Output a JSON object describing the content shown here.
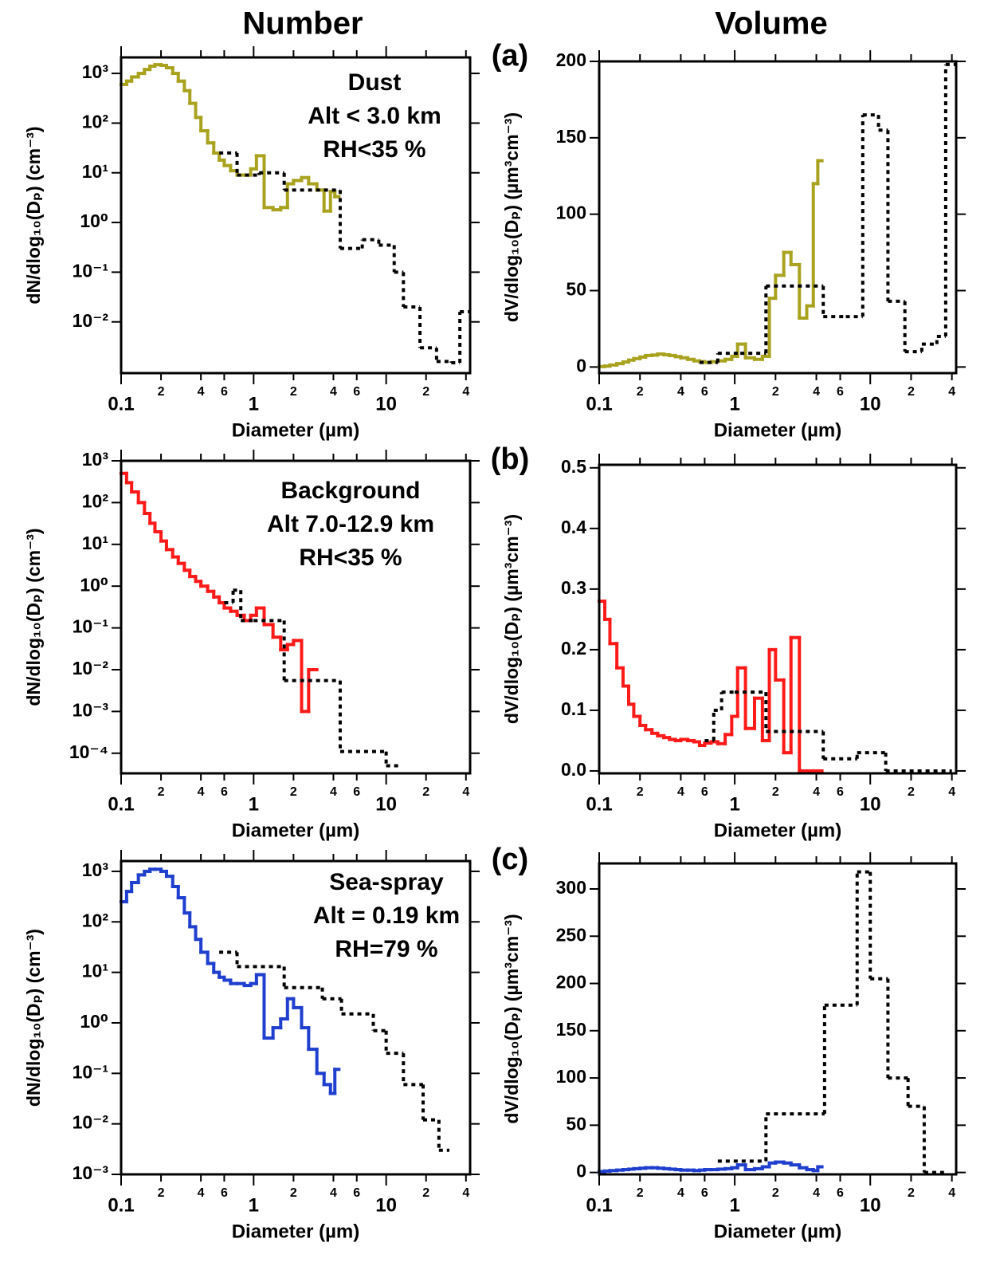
{
  "header": {
    "left": "Number",
    "right": "Volume"
  },
  "panel_labels": [
    "(a)",
    "(b)",
    "(c)"
  ],
  "chart_data": [
    {
      "type": "step",
      "x_label": "Diameter (µm)",
      "y_label": "dN/dlog₁₀(Dₚ) (cm⁻³)",
      "xlog": true,
      "ylog": true,
      "xlim": [
        0.1,
        43
      ],
      "ylim": [
        0.00093,
        2100
      ],
      "xticks": [
        0.1,
        {
          "value": 0.2,
          "label": "2"
        },
        {
          "value": 0.4,
          "label": "4"
        },
        {
          "value": 0.6,
          "label": "6"
        },
        1,
        {
          "value": 2,
          "label": "2"
        },
        {
          "value": 4,
          "label": "4"
        },
        {
          "value": 6,
          "label": "6"
        },
        10,
        {
          "value": 20,
          "label": "2"
        },
        {
          "value": 40,
          "label": "4"
        }
      ],
      "yticks": [
        {
          "value": 0.01,
          "label": "10⁻²"
        },
        {
          "value": 0.1,
          "label": "10⁻¹"
        },
        {
          "value": 1,
          "label": "10⁰"
        },
        {
          "value": 10,
          "label": "10¹"
        },
        {
          "value": 100,
          "label": "10²"
        },
        {
          "value": 1000,
          "label": "10³"
        }
      ],
      "annotations": [
        "Dust",
        "Alt < 3.0 km",
        "RH<35 %"
      ],
      "series": [
        {
          "color": "#a9a21f",
          "style": "solid",
          "bins": [
            0.1,
            0.11,
            0.12,
            0.135,
            0.15,
            0.165,
            0.18,
            0.2,
            0.22,
            0.245,
            0.27,
            0.3,
            0.33,
            0.365,
            0.4,
            0.45,
            0.5,
            0.55,
            0.6,
            0.67,
            0.75,
            0.85,
            0.95,
            1.05,
            1.2,
            1.4,
            1.6,
            1.8,
            2.0,
            2.3,
            2.6,
            3.0,
            3.4,
            3.8,
            4.1,
            4.4
          ],
          "values": [
            600,
            700,
            850,
            1000,
            1200,
            1400,
            1500,
            1450,
            1300,
            1000,
            700,
            450,
            250,
            130,
            70,
            40,
            25,
            18,
            14,
            11,
            9,
            9,
            12,
            22,
            2,
            1.8,
            2,
            6,
            7,
            8,
            6,
            4.5,
            1.7,
            4.2,
            3.3
          ]
        },
        {
          "color": "#000000",
          "style": "dotted",
          "bins": [
            0.55,
            0.75,
            1.1,
            1.7,
            4.5,
            6.6,
            8.8,
            11.5,
            13.5,
            18,
            24,
            31,
            36,
            43
          ],
          "values": [
            25,
            9,
            10,
            4.5,
            0.3,
            0.45,
            0.35,
            0.1,
            0.02,
            0.003,
            0.0016,
            0.0015,
            0.016
          ]
        }
      ]
    },
    {
      "type": "step",
      "x_label": "Diameter (µm)",
      "y_label": "dV/dlog₁₀(Dₚ) (µm³cm⁻³)",
      "xlog": true,
      "ylog": false,
      "xlim": [
        0.1,
        43
      ],
      "ylim": [
        -4,
        200
      ],
      "xticks": [
        0.1,
        {
          "value": 0.2,
          "label": "2"
        },
        {
          "value": 0.4,
          "label": "4"
        },
        {
          "value": 0.6,
          "label": "6"
        },
        1,
        {
          "value": 2,
          "label": "2"
        },
        {
          "value": 4,
          "label": "4"
        },
        {
          "value": 6,
          "label": "6"
        },
        10,
        {
          "value": 20,
          "label": "2"
        },
        {
          "value": 40,
          "label": "4"
        }
      ],
      "yticks": [
        0,
        50,
        100,
        150,
        200
      ],
      "series": [
        {
          "color": "#a9a21f",
          "style": "solid",
          "bins": [
            0.1,
            0.11,
            0.12,
            0.135,
            0.15,
            0.165,
            0.18,
            0.2,
            0.22,
            0.245,
            0.27,
            0.3,
            0.33,
            0.365,
            0.4,
            0.45,
            0.5,
            0.55,
            0.6,
            0.67,
            0.75,
            0.85,
            0.95,
            1.05,
            1.2,
            1.4,
            1.6,
            1.8,
            2.0,
            2.3,
            2.6,
            3.0,
            3.4,
            3.8,
            4.1,
            4.4
          ],
          "values": [
            0.3,
            0.6,
            1.3,
            2.2,
            3.3,
            4.5,
            5.5,
            6.5,
            7.5,
            7.8,
            8.5,
            8,
            7.5,
            6.8,
            6,
            5,
            4,
            3.5,
            3,
            3.5,
            4,
            5,
            7,
            15,
            6,
            5,
            7,
            45,
            60,
            75,
            67,
            32,
            40,
            120,
            135
          ]
        },
        {
          "color": "#000000",
          "style": "dotted",
          "bins": [
            0.55,
            0.75,
            1.1,
            1.7,
            4.5,
            6.6,
            8.8,
            11.5,
            13.5,
            18,
            24,
            31,
            36,
            43
          ],
          "values": [
            3,
            9,
            9,
            53,
            33,
            33,
            165,
            155,
            43,
            10,
            15,
            20,
            198
          ]
        }
      ]
    },
    {
      "type": "step",
      "x_label": "Diameter (µm)",
      "y_label": "dN/dlog₁₀(Dₚ) (cm⁻³)",
      "xlog": true,
      "ylog": true,
      "xlim": [
        0.1,
        43
      ],
      "ylim": [
        3.3e-05,
        1000
      ],
      "xticks": [
        0.1,
        {
          "value": 0.2,
          "label": "2"
        },
        {
          "value": 0.4,
          "label": "4"
        },
        {
          "value": 0.6,
          "label": "6"
        },
        1,
        {
          "value": 2,
          "label": "2"
        },
        {
          "value": 4,
          "label": "4"
        },
        {
          "value": 6,
          "label": "6"
        },
        10,
        {
          "value": 20,
          "label": "2"
        },
        {
          "value": 40,
          "label": "4"
        }
      ],
      "yticks": [
        {
          "value": 0.0001,
          "label": "10⁻⁴"
        },
        {
          "value": 0.001,
          "label": "10⁻³"
        },
        {
          "value": 0.01,
          "label": "10⁻²"
        },
        {
          "value": 0.1,
          "label": "10⁻¹"
        },
        {
          "value": 1,
          "label": "10⁰"
        },
        {
          "value": 10,
          "label": "10¹"
        },
        {
          "value": 100,
          "label": "10²"
        },
        {
          "value": 1000,
          "label": "10³"
        }
      ],
      "annotations": [
        "Background",
        "Alt 7.0-12.9 km",
        "RH<35 %"
      ],
      "series": [
        {
          "color": "#ff1a1a",
          "style": "solid",
          "bins": [
            0.1,
            0.11,
            0.12,
            0.135,
            0.15,
            0.165,
            0.18,
            0.2,
            0.22,
            0.245,
            0.27,
            0.3,
            0.33,
            0.365,
            0.4,
            0.45,
            0.5,
            0.55,
            0.6,
            0.67,
            0.75,
            0.85,
            0.95,
            1.05,
            1.2,
            1.4,
            1.6,
            1.8,
            2.0,
            2.3,
            2.6,
            3.0
          ],
          "values": [
            500,
            300,
            180,
            100,
            55,
            32,
            20,
            12,
            7.5,
            5,
            3.5,
            2.4,
            1.7,
            1.3,
            1.0,
            0.75,
            0.55,
            0.4,
            0.3,
            0.25,
            0.2,
            0.15,
            0.2,
            0.3,
            0.12,
            0.06,
            0.03,
            0.04,
            0.05,
            0.001,
            0.01
          ]
        },
        {
          "color": "#000000",
          "style": "dotted",
          "bins": [
            0.6,
            0.7,
            0.8,
            1.0,
            1.7,
            4.5,
            10,
            13
          ],
          "values": [
            0.4,
            0.8,
            0.15,
            0.15,
            0.0055,
            0.00011,
            5e-05
          ]
        }
      ]
    },
    {
      "type": "step",
      "x_label": "Diameter (µm)",
      "y_label": "dV/dlog₁₀(Dₚ) (µm³cm⁻³)",
      "xlog": true,
      "ylog": false,
      "xlim": [
        0.1,
        43
      ],
      "ylim": [
        -0.004,
        0.505
      ],
      "xticks": [
        0.1,
        {
          "value": 0.2,
          "label": "2"
        },
        {
          "value": 0.4,
          "label": "4"
        },
        {
          "value": 0.6,
          "label": "6"
        },
        1,
        {
          "value": 2,
          "label": "2"
        },
        {
          "value": 4,
          "label": "4"
        },
        {
          "value": 6,
          "label": "6"
        },
        10,
        {
          "value": 20,
          "label": "2"
        },
        {
          "value": 40,
          "label": "4"
        }
      ],
      "yticks": [
        {
          "value": 0,
          "label": "0.0"
        },
        0.1,
        0.2,
        0.3,
        0.4,
        0.5
      ],
      "series": [
        {
          "color": "#ff1a1a",
          "style": "solid",
          "bins": [
            0.1,
            0.11,
            0.12,
            0.135,
            0.15,
            0.165,
            0.18,
            0.2,
            0.22,
            0.245,
            0.27,
            0.3,
            0.33,
            0.365,
            0.4,
            0.45,
            0.5,
            0.55,
            0.6,
            0.67,
            0.75,
            0.85,
            0.95,
            1.05,
            1.2,
            1.4,
            1.6,
            1.8,
            2.0,
            2.3,
            2.6,
            3.0,
            3.4,
            3.8,
            4.1,
            4.4
          ],
          "values": [
            0.28,
            0.25,
            0.21,
            0.17,
            0.14,
            0.11,
            0.09,
            0.075,
            0.068,
            0.062,
            0.058,
            0.055,
            0.052,
            0.05,
            0.052,
            0.05,
            0.048,
            0.042,
            0.046,
            0.048,
            0.045,
            0.06,
            0.09,
            0.17,
            0.07,
            0.12,
            0.05,
            0.2,
            0.15,
            0.03,
            0.22,
            0,
            0,
            0,
            0
          ]
        },
        {
          "color": "#000000",
          "style": "dotted",
          "bins": [
            0.6,
            0.7,
            0.8,
            1.0,
            1.7,
            4.5,
            8,
            13,
            40
          ],
          "values": [
            0.05,
            0.1,
            0.13,
            0.13,
            0.065,
            0.02,
            0.03,
            0
          ]
        }
      ]
    },
    {
      "type": "step",
      "x_label": "Diameter (µm)",
      "y_label": "dN/dlog₁₀(Dₚ) (cm⁻³)",
      "xlog": true,
      "ylog": true,
      "xlim": [
        0.1,
        43
      ],
      "ylim": [
        0.001,
        1600
      ],
      "xticks": [
        0.1,
        {
          "value": 0.2,
          "label": "2"
        },
        {
          "value": 0.4,
          "label": "4"
        },
        {
          "value": 0.6,
          "label": "6"
        },
        1,
        {
          "value": 2,
          "label": "2"
        },
        {
          "value": 4,
          "label": "4"
        },
        {
          "value": 6,
          "label": "6"
        },
        10,
        {
          "value": 20,
          "label": "2"
        },
        {
          "value": 40,
          "label": "4"
        }
      ],
      "yticks": [
        {
          "value": 0.001,
          "label": "10⁻³"
        },
        {
          "value": 0.01,
          "label": "10⁻²"
        },
        {
          "value": 0.1,
          "label": "10⁻¹"
        },
        {
          "value": 1,
          "label": "10⁰"
        },
        {
          "value": 10,
          "label": "10¹"
        },
        {
          "value": 100,
          "label": "10²"
        },
        {
          "value": 1000,
          "label": "10³"
        }
      ],
      "annotations": [
        "Sea-spray",
        "Alt = 0.19 km",
        "RH=79 %"
      ],
      "series": [
        {
          "color": "#1f3fcf",
          "style": "solid",
          "bins": [
            0.1,
            0.11,
            0.12,
            0.135,
            0.15,
            0.165,
            0.18,
            0.2,
            0.22,
            0.245,
            0.27,
            0.3,
            0.33,
            0.365,
            0.4,
            0.45,
            0.5,
            0.55,
            0.6,
            0.67,
            0.75,
            0.85,
            0.95,
            1.05,
            1.2,
            1.4,
            1.6,
            1.8,
            2.0,
            2.3,
            2.6,
            3.0,
            3.4,
            3.8,
            4.1,
            4.4
          ],
          "values": [
            250,
            400,
            600,
            850,
            1000,
            1100,
            1100,
            1000,
            800,
            500,
            300,
            150,
            80,
            45,
            25,
            15,
            10,
            8,
            7,
            6,
            6,
            5.5,
            6,
            9,
            0.5,
            0.8,
            1.2,
            3,
            2,
            0.8,
            0.3,
            0.1,
            0.06,
            0.04,
            0.12
          ]
        },
        {
          "color": "#000000",
          "style": "dotted",
          "bins": [
            0.55,
            0.75,
            1.7,
            3.3,
            4.6,
            8,
            10,
            13.5,
            19,
            25,
            30
          ],
          "values": [
            25,
            13,
            5,
            3,
            1.5,
            0.7,
            0.25,
            0.06,
            0.012,
            0.003
          ]
        }
      ]
    },
    {
      "type": "step",
      "x_label": "Diameter (µm)",
      "y_label": "dV/dlog₁₀(Dₚ) (µm³cm⁻³)",
      "xlog": true,
      "ylog": false,
      "xlim": [
        0.1,
        43
      ],
      "ylim": [
        -2,
        327
      ],
      "xticks": [
        0.1,
        {
          "value": 0.2,
          "label": "2"
        },
        {
          "value": 0.4,
          "label": "4"
        },
        {
          "value": 0.6,
          "label": "6"
        },
        1,
        {
          "value": 2,
          "label": "2"
        },
        {
          "value": 4,
          "label": "4"
        },
        {
          "value": 6,
          "label": "6"
        },
        10,
        {
          "value": 20,
          "label": "2"
        },
        {
          "value": 40,
          "label": "4"
        }
      ],
      "yticks": [
        0,
        50,
        100,
        150,
        200,
        250,
        300
      ],
      "series": [
        {
          "color": "#1f3fcf",
          "style": "solid",
          "bins": [
            0.1,
            0.11,
            0.12,
            0.135,
            0.15,
            0.165,
            0.18,
            0.2,
            0.22,
            0.245,
            0.27,
            0.3,
            0.33,
            0.365,
            0.4,
            0.45,
            0.5,
            0.55,
            0.6,
            0.67,
            0.75,
            0.85,
            0.95,
            1.05,
            1.2,
            1.4,
            1.6,
            1.8,
            2.0,
            2.3,
            2.6,
            3.0,
            3.4,
            3.8,
            4.1,
            4.4
          ],
          "values": [
            1,
            1.5,
            2,
            2.5,
            3,
            3.5,
            4,
            4.5,
            5,
            5,
            4.5,
            4,
            3.5,
            3,
            2.5,
            2.5,
            2,
            2.5,
            3,
            3,
            3.5,
            4,
            5,
            8,
            3,
            4,
            6,
            10,
            11,
            10,
            8,
            5,
            3,
            2,
            6
          ]
        },
        {
          "color": "#000000",
          "style": "dotted",
          "bins": [
            0.75,
            1.7,
            4.6,
            8,
            10,
            13.5,
            19,
            25,
            35
          ],
          "values": [
            12,
            62,
            177,
            318,
            205,
            100,
            70,
            0
          ]
        }
      ]
    }
  ]
}
